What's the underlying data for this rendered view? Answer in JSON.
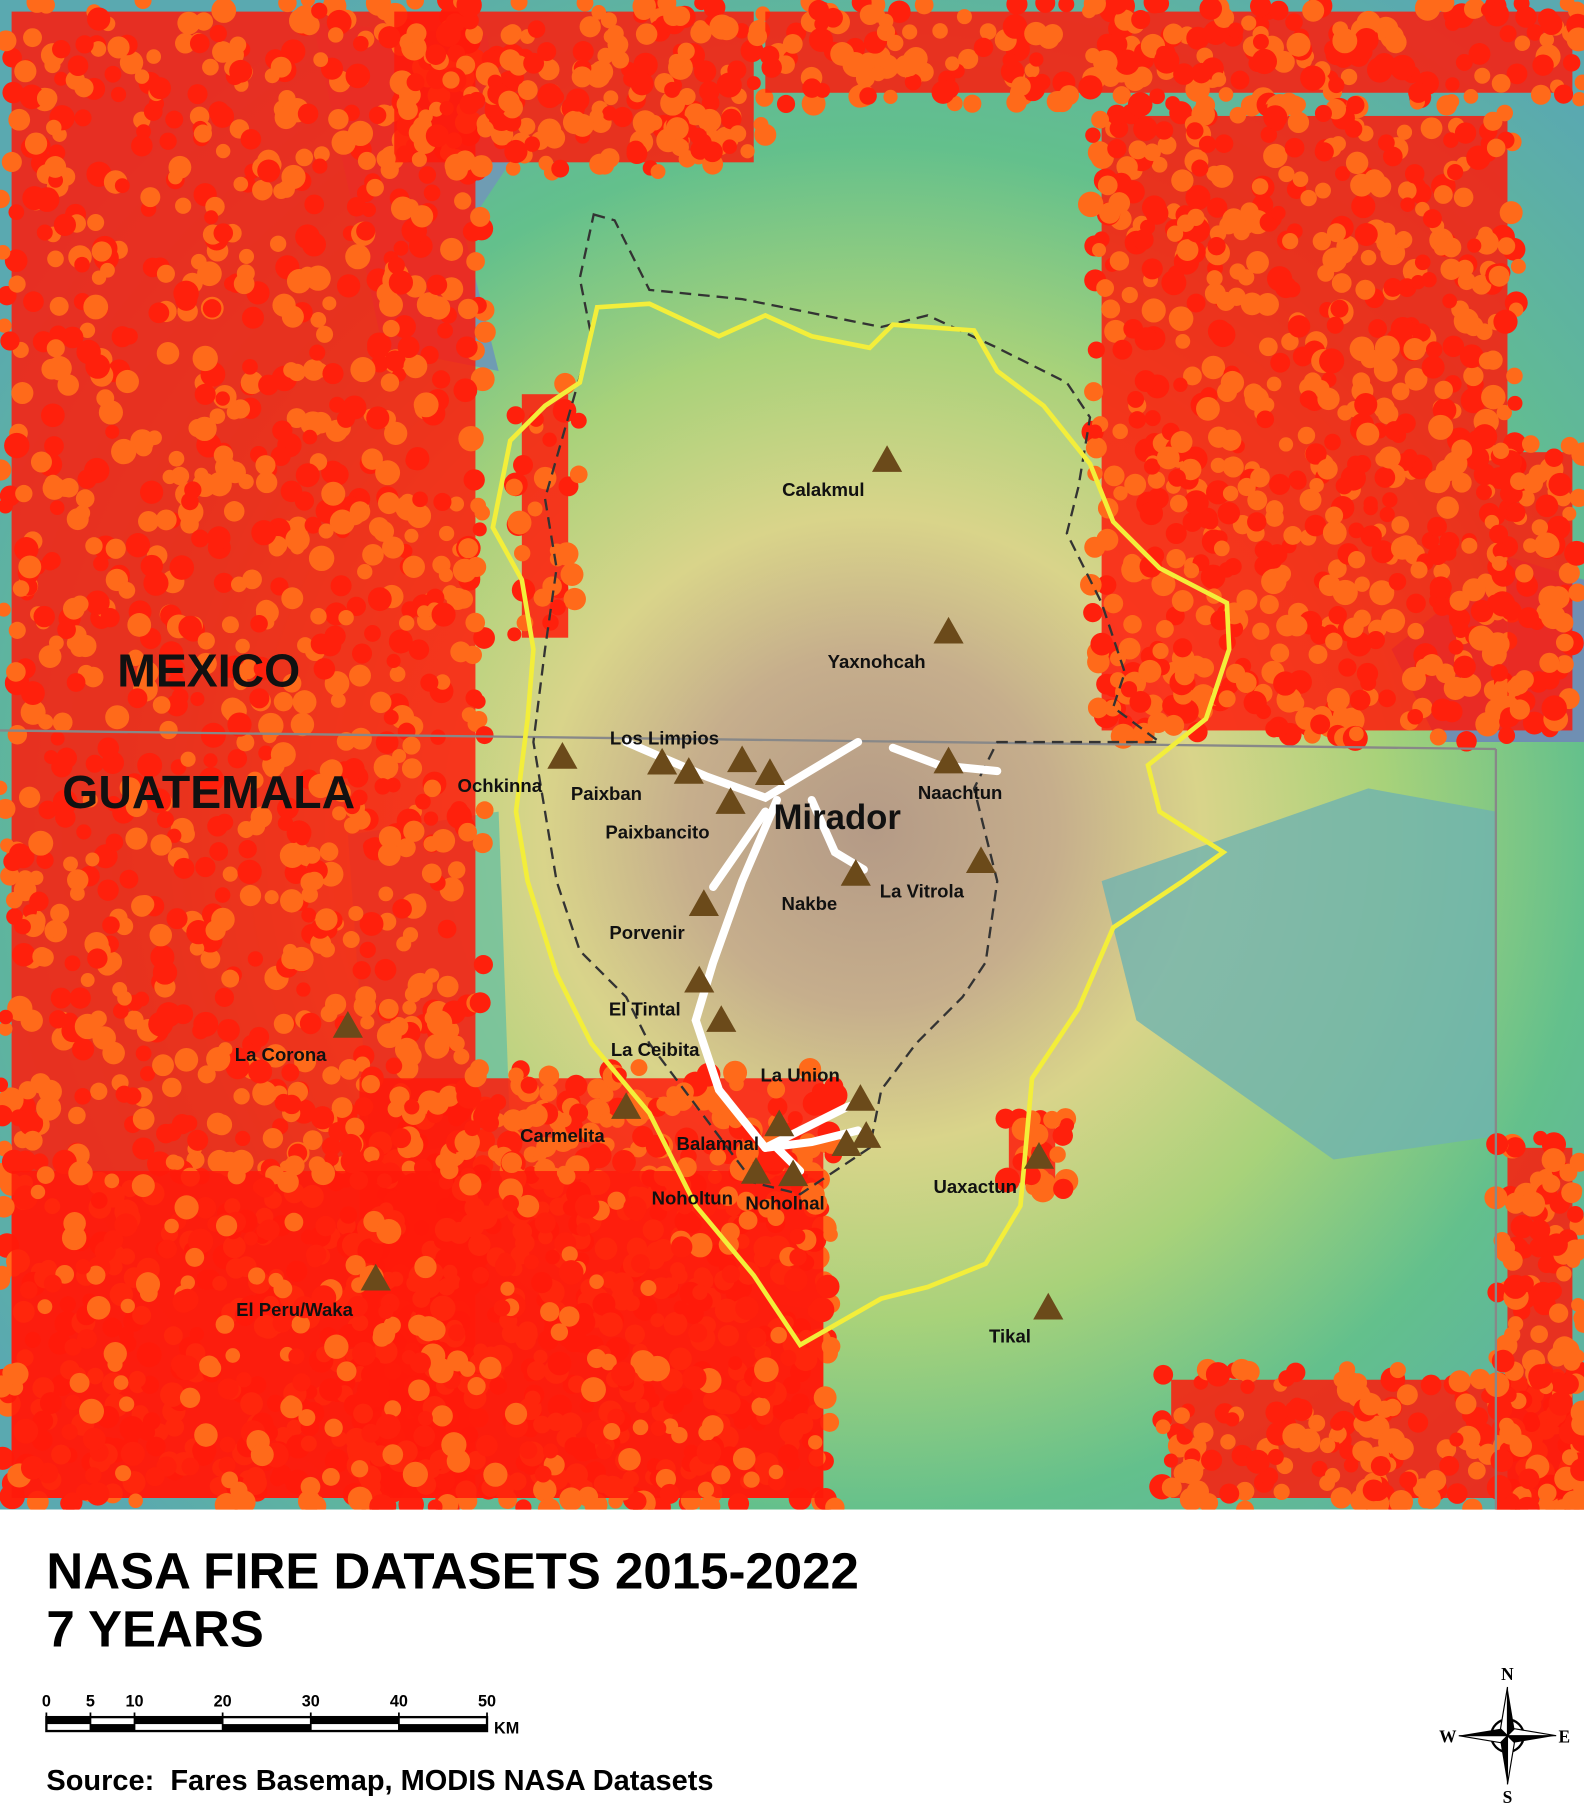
{
  "map": {
    "countries": [
      "MEXICO",
      "GUATEMALA"
    ],
    "focus_site": "Mirador",
    "sites": [
      "Calakmul",
      "Yaxnohcah",
      "Los Limpios",
      "Ochkinna",
      "Paixban",
      "Paixbancito",
      "Naachtun",
      "La Vitrola",
      "Nakbe",
      "Porvenir",
      "El Tintal",
      "La Ceibita",
      "La Corona",
      "La Union",
      "Carmelita",
      "Balamnal",
      "Noholtun",
      "Noholnal",
      "Uaxactun",
      "El Peru/Waka",
      "Tikal"
    ]
  },
  "title": {
    "line1": "NASA FIRE DATASETS 2015-2022",
    "line2": "7 YEARS"
  },
  "scale_bar": {
    "ticks": [
      0,
      5,
      10,
      20,
      30,
      40,
      50
    ],
    "unit": "KM"
  },
  "source": "Source:  Fares Basemap, MODIS NASA Datasets",
  "compass": {
    "n": "N",
    "e": "E",
    "s": "S",
    "w": "W"
  }
}
